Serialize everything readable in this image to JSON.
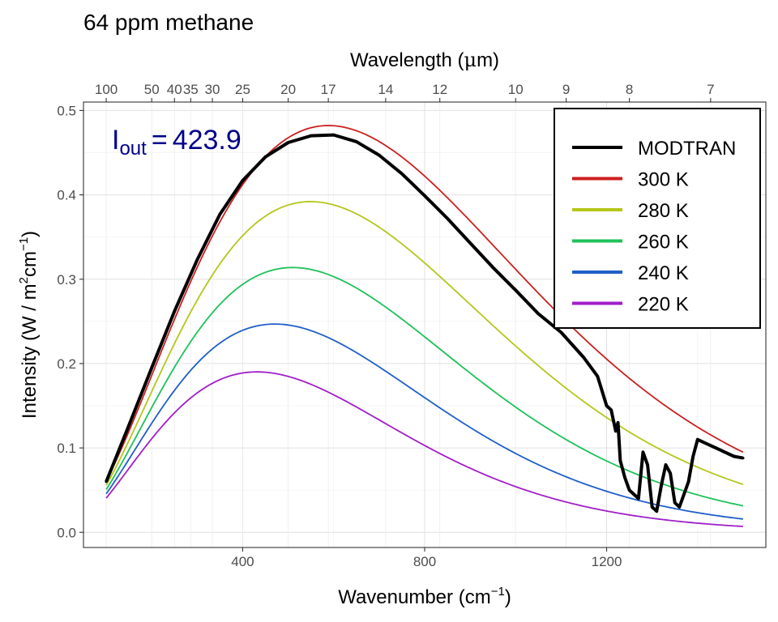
{
  "chart_data": {
    "type": "line",
    "title": "64 ppm methane",
    "xlabel": "Wavenumber",
    "xlabel_unit_base": "cm",
    "xlabel_unit_exp": "−1",
    "ylabel_prefix": "Intensity (W / m",
    "ylabel_sup1": "2",
    "ylabel_mid": "cm",
    "ylabel_sup2": "−1",
    "ylabel_suffix": ")",
    "top_axis_label_prefix": "Wavelength (",
    "top_axis_label_mu": "μ",
    "top_axis_label_suffix": "m)",
    "annotation": {
      "symbol": "I",
      "subscript": "out",
      "equals": "=",
      "value": "423.9",
      "color": "#00008b"
    },
    "xlim": [
      50,
      1550
    ],
    "ylim": [
      -0.018,
      0.51
    ],
    "x_ticks": [
      400,
      800,
      1200
    ],
    "y_ticks": [
      0.0,
      0.1,
      0.2,
      0.3,
      0.4,
      0.5
    ],
    "y_tick_labels": [
      "0.0",
      "0.1",
      "0.2",
      "0.3",
      "0.4",
      "0.5"
    ],
    "top_ticks": [
      100,
      50,
      40,
      35,
      30,
      25,
      20,
      17,
      14,
      12,
      10,
      9,
      8,
      7
    ],
    "top_tick_labels": [
      "100",
      "50",
      "40",
      "35",
      "30",
      "25",
      "20",
      "17",
      "14",
      "12",
      "10",
      "9",
      "8",
      "7"
    ],
    "grid": true,
    "legend_placement": "top-right",
    "planck_range": [
      100,
      1500
    ],
    "series": [
      {
        "name": "MODTRAN",
        "color": "#000000"
      },
      {
        "name": "300 K",
        "color": "#cc1f1f",
        "temperature": 300
      },
      {
        "name": "280 K",
        "color": "#b5c61a",
        "temperature": 280
      },
      {
        "name": "260 K",
        "color": "#1fc15a",
        "temperature": 260
      },
      {
        "name": "240 K",
        "color": "#1f5fc8",
        "temperature": 240
      },
      {
        "name": "220 K",
        "color": "#a01fc8",
        "temperature": 220
      }
    ],
    "modtran": {
      "x": [
        100,
        150,
        200,
        250,
        300,
        350,
        400,
        450,
        500,
        550,
        600,
        650,
        700,
        750,
        800,
        850,
        900,
        950,
        1000,
        1050,
        1100,
        1150,
        1180,
        1200,
        1210,
        1220,
        1225,
        1230,
        1240,
        1250,
        1260,
        1270,
        1280,
        1290,
        1300,
        1310,
        1320,
        1330,
        1340,
        1350,
        1360,
        1370,
        1380,
        1390,
        1400,
        1420,
        1440,
        1460,
        1480,
        1500
      ],
      "y": [
        0.06,
        0.127,
        0.195,
        0.262,
        0.323,
        0.377,
        0.417,
        0.445,
        0.462,
        0.47,
        0.471,
        0.463,
        0.447,
        0.425,
        0.399,
        0.372,
        0.343,
        0.314,
        0.287,
        0.259,
        0.237,
        0.207,
        0.185,
        0.15,
        0.145,
        0.12,
        0.13,
        0.085,
        0.065,
        0.05,
        0.045,
        0.04,
        0.095,
        0.08,
        0.03,
        0.025,
        0.055,
        0.08,
        0.07,
        0.035,
        0.03,
        0.045,
        0.06,
        0.09,
        0.11,
        0.105,
        0.1,
        0.095,
        0.09,
        0.088
      ]
    }
  }
}
